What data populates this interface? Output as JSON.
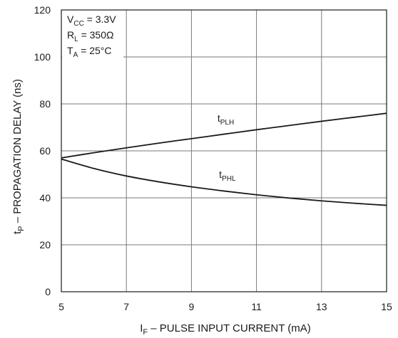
{
  "chart_data": {
    "type": "line",
    "xlabel": {
      "main": "I",
      "sub": "F",
      "rest": " – PULSE INPUT CURRENT (mA)"
    },
    "ylabel": {
      "main": "t",
      "sub": "P",
      "rest": " – PROPAGATION DELAY (ns)"
    },
    "xlim": [
      5,
      15
    ],
    "ylim": [
      0,
      120
    ],
    "xticks": [
      5,
      7,
      9,
      11,
      13,
      15
    ],
    "yticks": [
      0,
      20,
      40,
      60,
      80,
      100,
      120
    ],
    "grid": true,
    "conditions": [
      {
        "main": "V",
        "sub": "CC",
        "rest": " = 3.3V"
      },
      {
        "main": "R",
        "sub": "L",
        "rest": " = 350Ω"
      },
      {
        "main": "T",
        "sub": "A",
        "rest": " = 25°C"
      }
    ],
    "series": [
      {
        "name": "tPLH",
        "label_main": "t",
        "label_sub": "PLH",
        "x": [
          5,
          6,
          7,
          8,
          9,
          10,
          11,
          12,
          13,
          14,
          15
        ],
        "y": [
          57,
          59.2,
          61.3,
          63.3,
          65.2,
          67.1,
          69,
          70.8,
          72.6,
          74.3,
          76
        ]
      },
      {
        "name": "tPHL",
        "label_main": "t",
        "label_sub": "PHL",
        "x": [
          5,
          6,
          7,
          8,
          9,
          10,
          11,
          12,
          13,
          14,
          15
        ],
        "y": [
          56.5,
          52.5,
          49.3,
          46.8,
          44.7,
          42.9,
          41.3,
          39.9,
          38.7,
          37.7,
          36.8
        ]
      }
    ]
  }
}
